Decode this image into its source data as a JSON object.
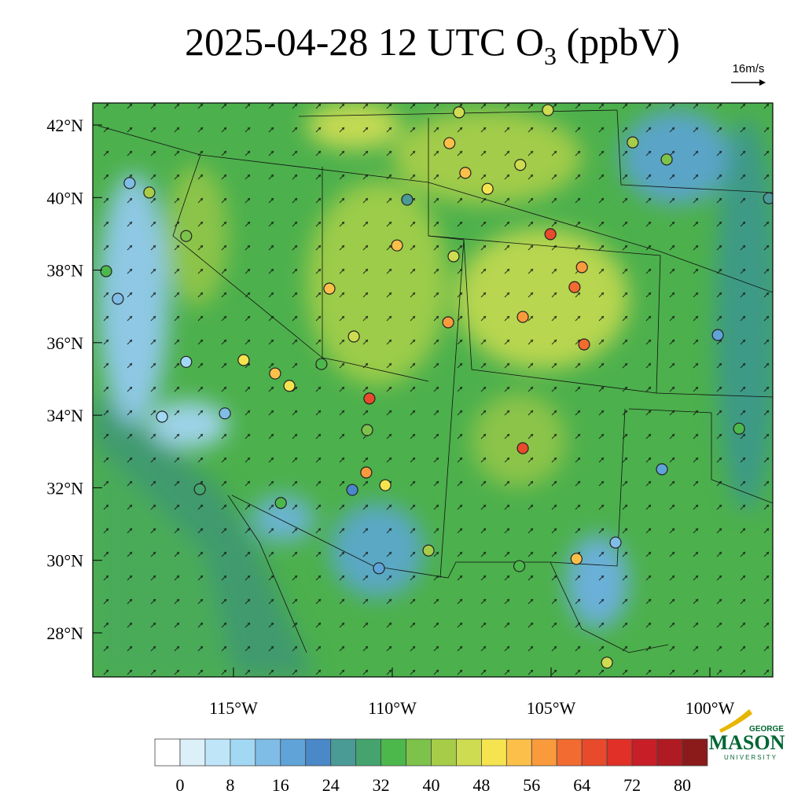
{
  "map": {
    "title": "2025-04-28 12 UTC O",
    "title_subscript": "3",
    "title_suffix": " (ppbV)",
    "wind_reference": "16m/s",
    "lat_ticks": [
      {
        "value": 42,
        "label": "42°N"
      },
      {
        "value": 40,
        "label": "40°N"
      },
      {
        "value": 38,
        "label": "38°N"
      },
      {
        "value": 36,
        "label": "36°N"
      },
      {
        "value": 34,
        "label": "34°N"
      },
      {
        "value": 32,
        "label": "32°N"
      },
      {
        "value": 30,
        "label": "30°N"
      },
      {
        "value": 28,
        "label": "28°N"
      }
    ],
    "lon_ticks": [
      {
        "value": -115,
        "label": "115°W"
      },
      {
        "value": -110,
        "label": "110°W"
      },
      {
        "value": -105,
        "label": "105°W"
      },
      {
        "value": -100,
        "label": "100°W"
      }
    ],
    "stations": [
      [
        -104.03,
        38.08,
        58
      ],
      [
        -105.02,
        38.99,
        66
      ],
      [
        -104.26,
        37.53,
        60
      ],
      [
        -103.96,
        35.95,
        62
      ],
      [
        -110.72,
        34.46,
        66
      ],
      [
        -105.89,
        33.09,
        64
      ],
      [
        -105.89,
        36.71,
        58
      ],
      [
        -108.24,
        36.56,
        56
      ],
      [
        -107.0,
        40.24,
        48
      ],
      [
        -107.7,
        40.68,
        52
      ],
      [
        -108.2,
        41.5,
        54
      ],
      [
        -107.9,
        42.35,
        44
      ],
      [
        -105.1,
        42.41,
        44
      ],
      [
        -101.36,
        41.05,
        36
      ],
      [
        -98.14,
        39.98,
        24
      ],
      [
        -99.75,
        36.21,
        18
      ],
      [
        -102.97,
        30.49,
        12
      ],
      [
        -104.2,
        30.04,
        54
      ],
      [
        -103.24,
        27.18,
        46
      ],
      [
        -106.0,
        29.84,
        32
      ],
      [
        -108.86,
        30.27,
        40
      ],
      [
        -110.42,
        29.78,
        16
      ],
      [
        -110.22,
        32.07,
        48
      ],
      [
        -110.82,
        32.42,
        56
      ],
      [
        -111.26,
        31.94,
        22
      ],
      [
        -112.23,
        35.41,
        34
      ],
      [
        -110.79,
        33.59,
        36
      ],
      [
        -113.69,
        35.15,
        54
      ],
      [
        -113.24,
        34.81,
        48
      ],
      [
        -114.68,
        35.52,
        48
      ],
      [
        -115.27,
        34.05,
        14
      ],
      [
        -116.49,
        35.47,
        10
      ],
      [
        -117.25,
        33.96,
        10
      ],
      [
        -118.27,
        40.4,
        14
      ],
      [
        -118.64,
        37.21,
        12
      ],
      [
        -119.01,
        37.97,
        32
      ],
      [
        -117.65,
        40.14,
        40
      ],
      [
        -116.49,
        38.94,
        36
      ],
      [
        -111.98,
        37.49,
        54
      ],
      [
        -111.21,
        36.17,
        46
      ],
      [
        -109.53,
        39.94,
        24
      ],
      [
        -109.85,
        38.68,
        52
      ],
      [
        -108.07,
        38.38,
        46
      ],
      [
        -102.43,
        41.52,
        42
      ],
      [
        -105.97,
        40.9,
        44
      ],
      [
        -99.08,
        33.63,
        32
      ],
      [
        -101.51,
        32.51,
        16
      ],
      [
        -113.51,
        31.58,
        34
      ],
      [
        -116.06,
        31.96,
        30
      ]
    ],
    "colorbar": {
      "colors": [
        "#ffffff",
        "#dcf0fa",
        "#bfe6f8",
        "#a2d8f4",
        "#80bde6",
        "#5fa3d8",
        "#4a88c8",
        "#4a9a96",
        "#45a46e",
        "#4cb84c",
        "#7dc24a",
        "#a6cc48",
        "#cddc50",
        "#f5e450",
        "#fcc04a",
        "#f99a3c",
        "#f26b30",
        "#e84a2c",
        "#e03028",
        "#c81e28",
        "#b01a22",
        "#8b1a1a"
      ],
      "ticks": [
        0,
        8,
        16,
        24,
        32,
        40,
        48,
        56,
        64,
        72,
        80
      ]
    },
    "logo": {
      "top": "GEORGE",
      "name": "MASON",
      "bottom": "UNIVERSITY"
    }
  }
}
